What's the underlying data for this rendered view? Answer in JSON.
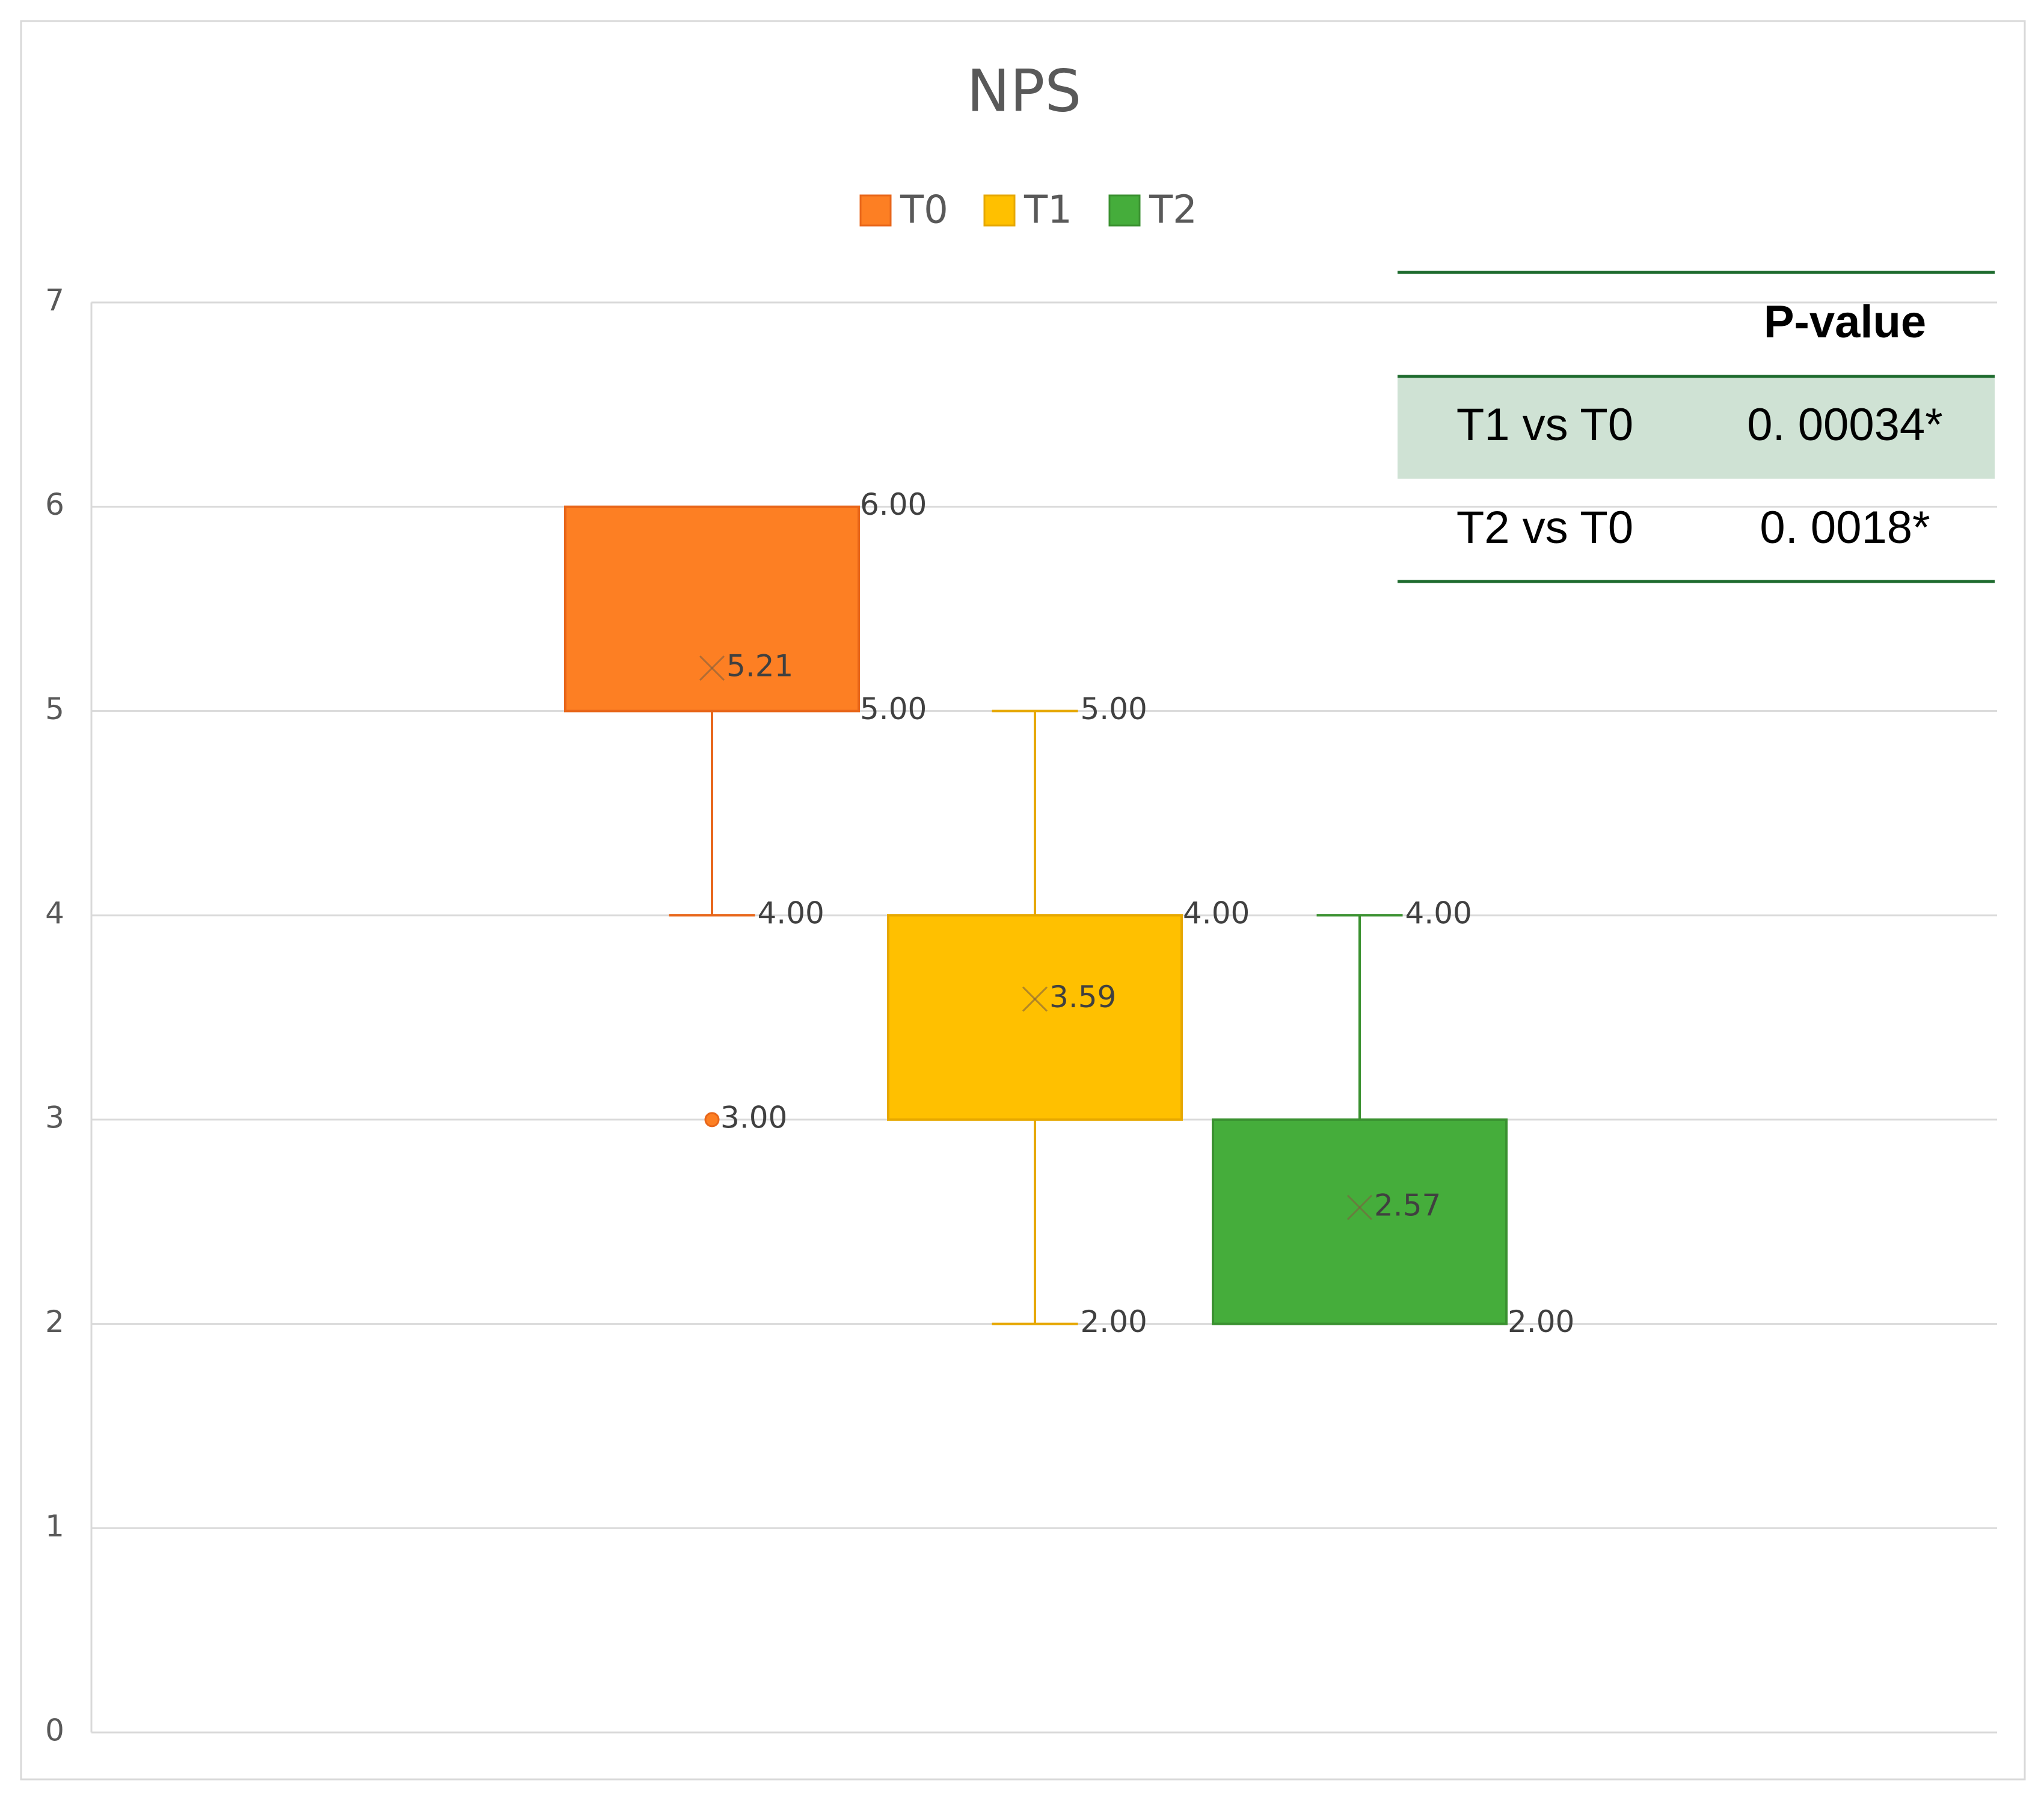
{
  "chart_data": {
    "type": "box",
    "title": "NPS",
    "legend": "top",
    "grid": true,
    "ylim": [
      0,
      7
    ],
    "yticks": [
      0,
      1,
      2,
      3,
      4,
      5,
      6,
      7
    ],
    "series": [
      {
        "name": "T0",
        "color": "#fd7f23",
        "edge": "#e8661a",
        "values": {
          "min": 4,
          "q1": 5,
          "q3": 6,
          "mean": 5.21
        },
        "value_labels": {
          "min": "4.00",
          "q1": "5.00",
          "q3": "6.00",
          "mean": "5.21"
        },
        "outliers": [
          3
        ],
        "outlier_labels": [
          "3.00"
        ]
      },
      {
        "name": "T1",
        "color": "#ffc000",
        "edge": "#e6a800",
        "values": {
          "min": 2,
          "q1": 3,
          "q3": 4,
          "max": 5,
          "mean": 3.59
        },
        "value_labels": {
          "min": "2.00",
          "q3": "4.00",
          "max": "5.00",
          "mean": "3.59"
        }
      },
      {
        "name": "T2",
        "color": "#45ad3b",
        "edge": "#3a9130",
        "values": {
          "q1": 2,
          "q3": 3,
          "max": 4,
          "mean": 2.57
        },
        "value_labels": {
          "q1": "2.00",
          "max": "4.00",
          "mean": "2.57"
        }
      }
    ]
  },
  "table": {
    "header": "P-value",
    "rows": [
      [
        "T1 vs T0",
        "0. 00034*"
      ],
      [
        "T2 vs T0",
        "0. 0018*"
      ]
    ]
  }
}
